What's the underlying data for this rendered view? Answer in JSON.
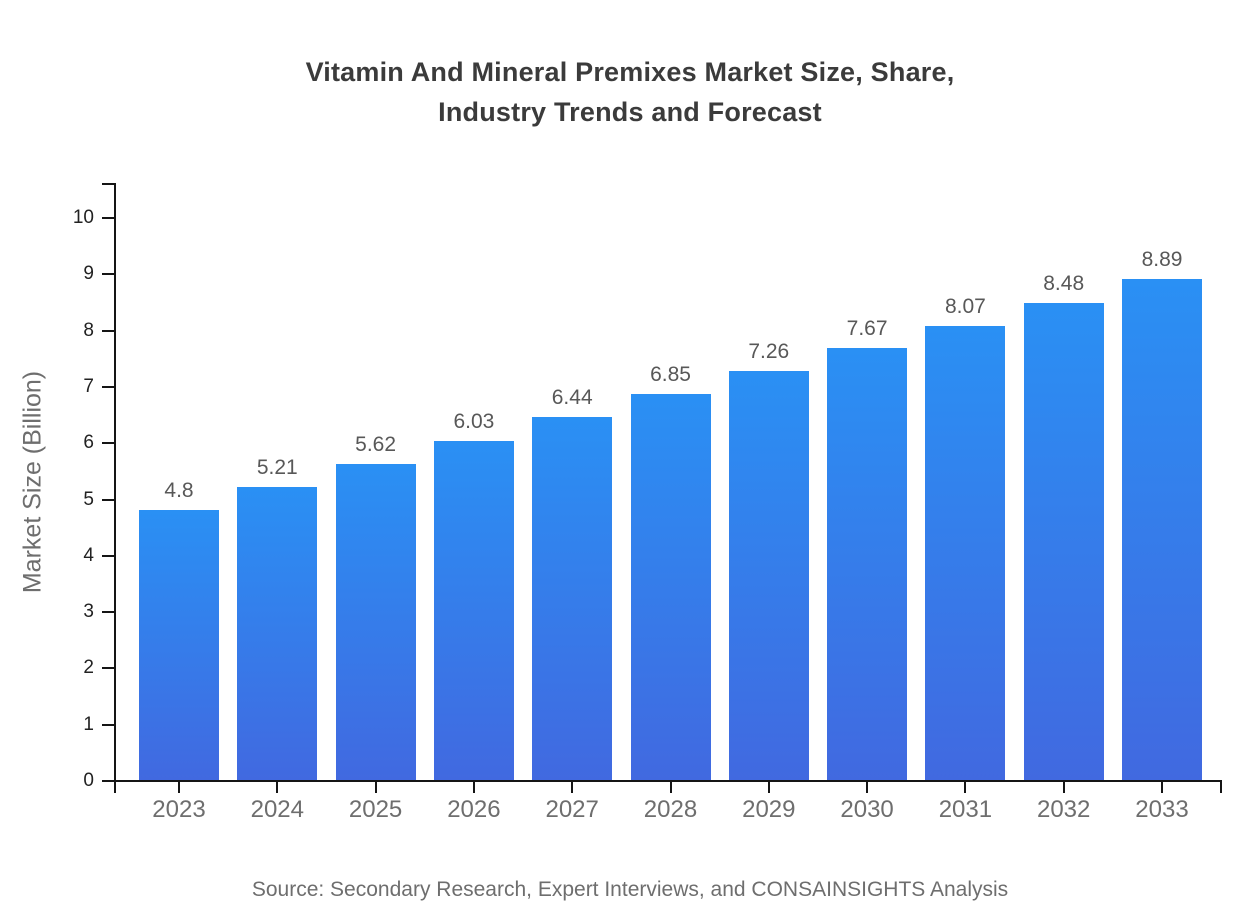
{
  "chart_data": {
    "type": "bar",
    "title_lines": [
      "Vitamin And Mineral Premixes Market Size, Share,",
      "Industry Trends and Forecast"
    ],
    "categories": [
      "2023",
      "2024",
      "2025",
      "2026",
      "2027",
      "2028",
      "2029",
      "2030",
      "2031",
      "2032",
      "2033"
    ],
    "values": [
      4.8,
      5.21,
      5.62,
      6.03,
      6.44,
      6.85,
      7.26,
      7.67,
      8.07,
      8.48,
      8.89
    ],
    "value_labels": [
      "4.8",
      "5.21",
      "5.62",
      "6.03",
      "6.44",
      "6.85",
      "7.26",
      "7.67",
      "8.07",
      "8.48",
      "8.89"
    ],
    "xlabel": "",
    "ylabel": "Market Size (Billion)",
    "ylim": [
      0,
      10
    ],
    "y_ticks": [
      0,
      1,
      2,
      3,
      4,
      5,
      6,
      7,
      8,
      9,
      10
    ],
    "grid": "off",
    "legend": "none",
    "source_note": "Source: Secondary Research, Expert Interviews, and CONSAINSIGHTS Analysis",
    "colors": {
      "bar_gradient_top": "#2a90f4",
      "bar_gradient_bottom": "#4169e0",
      "axis": "#151515",
      "title": "#3b3b3b",
      "y_tick_label": "#222222",
      "value_label": "#585858",
      "category_label": "#6e6e6e",
      "axis_label": "#6e6e6e",
      "source": "#6e6e6e",
      "background": "#ffffff"
    }
  }
}
